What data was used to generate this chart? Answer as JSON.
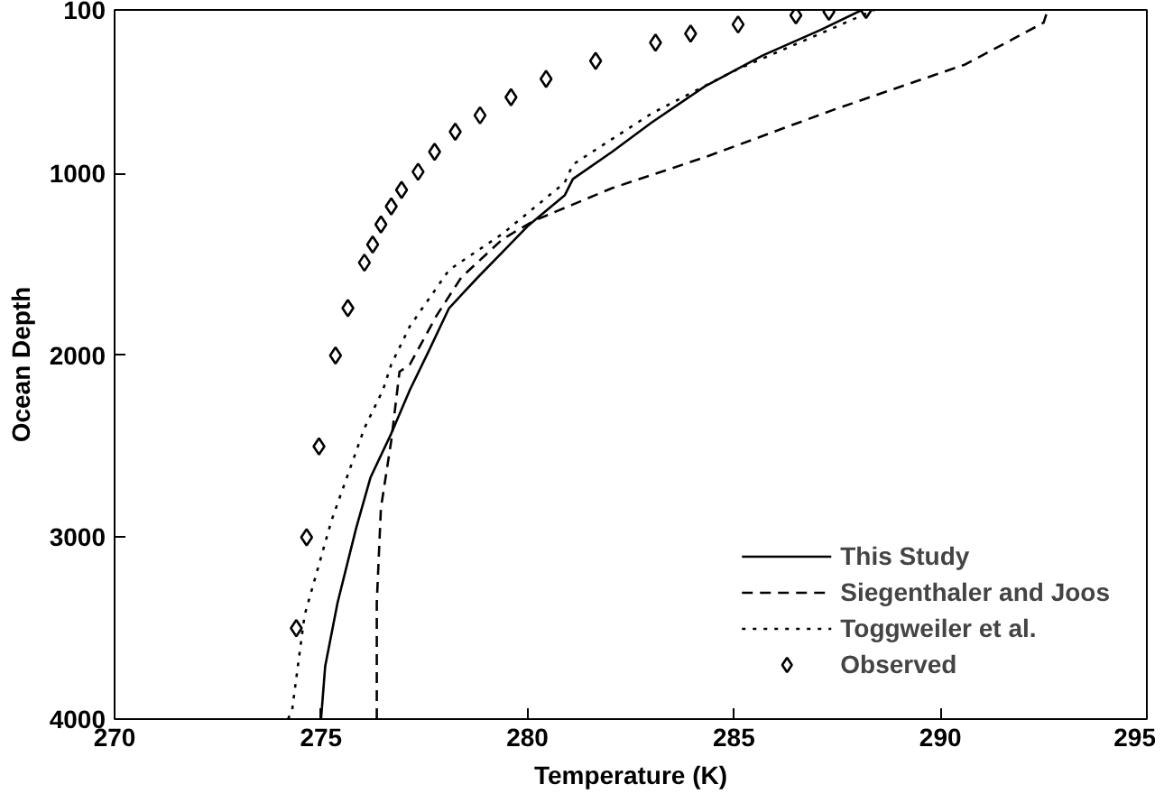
{
  "chart_data": {
    "type": "line",
    "xlabel": "Temperature (K)",
    "ylabel": "Ocean Depth",
    "xlim": [
      270,
      295
    ],
    "xticks": [
      270,
      275,
      280,
      285,
      290,
      295
    ],
    "ylim": [
      4000,
      100
    ],
    "yticks": [
      100,
      1000,
      2000,
      3000,
      4000
    ],
    "grid": false,
    "legend": "bottom right",
    "series": [
      {
        "name": "This Study",
        "line_style": "solid",
        "color": "#000000",
        "x": [
          275.0,
          275.1,
          275.4,
          275.85,
          276.2,
          276.7,
          277.15,
          277.6,
          278.1,
          278.8,
          279.4,
          280.0,
          280.9,
          281.1,
          282.05,
          283.0,
          284.3,
          285.7,
          287.1,
          288.1
        ],
        "values": [
          4000,
          3710,
          3360,
          2950,
          2670,
          2430,
          2190,
          1980,
          1740,
          1570,
          1430,
          1290,
          1120,
          1030,
          880,
          720,
          520,
          350,
          210,
          100
        ]
      },
      {
        "name": "Siegenthaler and Joos",
        "line_style": "dashed",
        "color": "#000000",
        "x": [
          276.35,
          276.35,
          276.45,
          276.7,
          276.9,
          277.15,
          277.8,
          278.4,
          279.4,
          280.15,
          281.1,
          282.05,
          284.3,
          287.4,
          290.6,
          292.5,
          292.6
        ],
        "values": [
          4000,
          3360,
          2840,
          2470,
          2090,
          2050,
          1780,
          1570,
          1360,
          1260,
          1170,
          1080,
          910,
          650,
          400,
          170,
          100
        ]
      },
      {
        "name": "Toggweiler et al.",
        "line_style": "dotted",
        "color": "#000000",
        "x": [
          274.2,
          274.3,
          274.6,
          275.25,
          276.05,
          276.5,
          276.7,
          277.15,
          278.1,
          279.4,
          280.9,
          281.1,
          283.0,
          285.05,
          287.3,
          288.4
        ],
        "values": [
          4000,
          3950,
          3430,
          2910,
          2400,
          2190,
          2050,
          1840,
          1530,
          1330,
          1050,
          950,
          670,
          430,
          210,
          100
        ]
      },
      {
        "name": "Observed",
        "type": "scatter",
        "marker": "diamond",
        "color": "#000000",
        "x": [
          274.4,
          274.65,
          274.95,
          275.35,
          275.65,
          276.05,
          276.25,
          276.45,
          276.7,
          276.95,
          277.35,
          277.75,
          278.25,
          278.85,
          279.6,
          280.45,
          281.65,
          283.1,
          283.95,
          285.1,
          286.5,
          287.3,
          288.2
        ],
        "values": [
          3500,
          3000,
          2500,
          2000,
          1740,
          1490,
          1390,
          1280,
          1180,
          1090,
          990,
          880,
          770,
          680,
          580,
          480,
          380,
          280,
          230,
          180,
          130,
          110,
          100
        ]
      }
    ]
  }
}
